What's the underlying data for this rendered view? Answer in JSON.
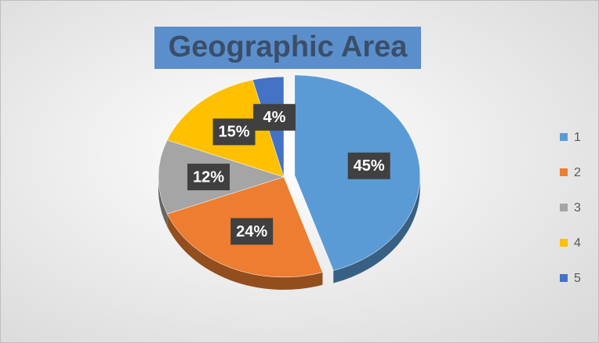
{
  "chart_data": {
    "type": "pie",
    "title": "Geographic Area",
    "categories": [
      "1",
      "2",
      "3",
      "4",
      "5"
    ],
    "values": [
      45,
      24,
      12,
      15,
      4
    ],
    "value_labels": [
      "45%",
      "24%",
      "12%",
      "15%",
      "4%"
    ],
    "colors": [
      "#5b9bd5",
      "#ed7d31",
      "#a5a5a5",
      "#ffc000",
      "#4472c4"
    ],
    "legend": "right"
  }
}
